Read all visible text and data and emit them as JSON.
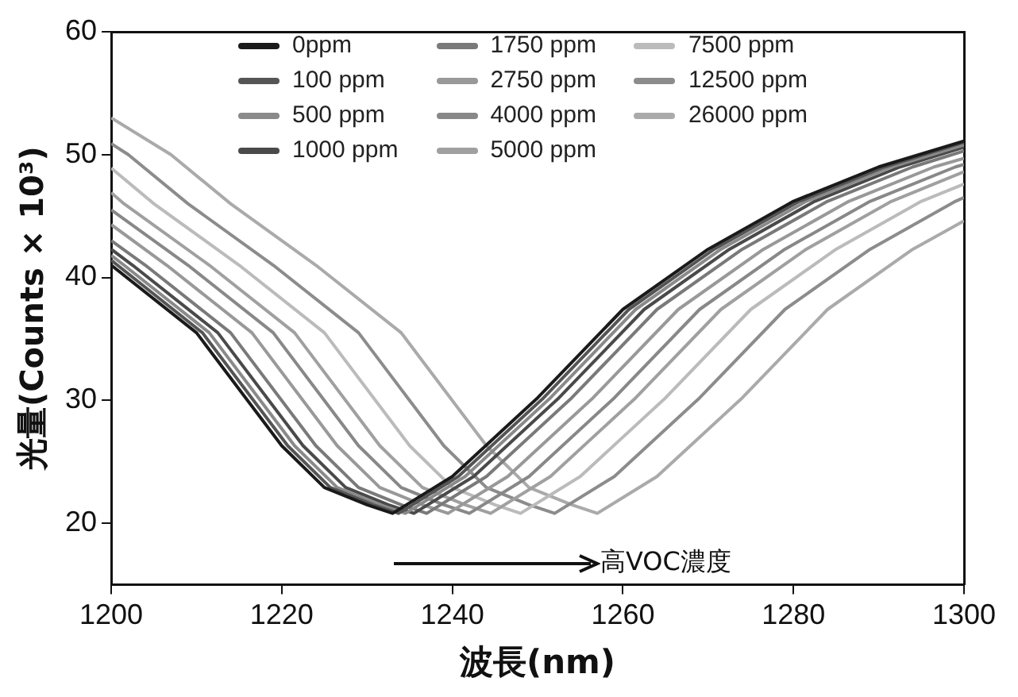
{
  "chart_data": {
    "type": "line",
    "xlabel": "波長(nm)",
    "ylabel": "光量(Counts × 10³)",
    "xlim": [
      1200,
      1300
    ],
    "xticks": [
      1200,
      1220,
      1240,
      1260,
      1280,
      1300
    ],
    "ylim": [
      15,
      60
    ],
    "yticks": [
      20,
      30,
      40,
      50,
      60
    ],
    "grid": false,
    "legend": "top",
    "annotations": [
      "高VOC濃度"
    ],
    "series": [
      {
        "name": "0ppm",
        "color": "#1a1a1a",
        "x": [
          1200,
          1210,
          1220,
          1225,
          1230,
          1233,
          1240,
          1250,
          1260,
          1270,
          1280,
          1290,
          1300
        ],
        "values": [
          41,
          35.5,
          26.3,
          22.9,
          21.5,
          20.8,
          23.8,
          30.2,
          37.4,
          42.3,
          46.2,
          49,
          51.1
        ]
      },
      {
        "name": "100 ppm",
        "color": "#555555",
        "x": [
          1200,
          1210.7,
          1220.7,
          1225.7,
          1230.7,
          1233.7,
          1240.7,
          1250.7,
          1260.7,
          1270.7,
          1280.7,
          1290.7,
          1300
        ],
        "values": [
          41.4,
          35.5,
          26.3,
          22.9,
          21.5,
          20.8,
          23.8,
          30.2,
          37.4,
          42.3,
          46.2,
          49,
          51.0
        ]
      },
      {
        "name": "500 ppm",
        "color": "#8a8a8a",
        "x": [
          1200,
          1201.5,
          1211.5,
          1221.5,
          1226.5,
          1231.5,
          1234.5,
          1241.5,
          1251.5,
          1261.5,
          1271.5,
          1281.5,
          1291.5,
          1300
        ],
        "values": [
          41.8,
          41,
          35.5,
          26.3,
          22.9,
          21.5,
          20.8,
          23.8,
          30.2,
          37.4,
          42.3,
          46.2,
          49,
          50.8
        ]
      },
      {
        "name": "1000 ppm",
        "color": "#4a4a4a",
        "x": [
          1200,
          1202.5,
          1212.5,
          1222.5,
          1227.5,
          1232.5,
          1235.5,
          1242.5,
          1252.5,
          1262.5,
          1272.5,
          1282.5,
          1292.5,
          1300
        ],
        "values": [
          42.3,
          41,
          35.5,
          26.3,
          22.9,
          21.5,
          20.8,
          23.8,
          30.2,
          37.4,
          42.3,
          46.2,
          49,
          50.6
        ]
      },
      {
        "name": "1750 ppm",
        "color": "#7a7a7a",
        "x": [
          1200,
          1204,
          1214,
          1224,
          1229,
          1234,
          1237,
          1244,
          1254,
          1264,
          1274,
          1284,
          1294,
          1300
        ],
        "values": [
          43,
          41,
          35.5,
          26.3,
          22.9,
          21.5,
          20.8,
          23.8,
          30.2,
          37.4,
          42.3,
          46.2,
          49,
          50.3
        ]
      },
      {
        "name": "2750 ppm",
        "color": "#999999",
        "x": [
          1200,
          1206.5,
          1216.5,
          1226.5,
          1231.5,
          1236.5,
          1239.5,
          1246.5,
          1256.5,
          1266.5,
          1276.5,
          1286.5,
          1296.5,
          1300
        ],
        "values": [
          44.3,
          41,
          35.5,
          26.3,
          22.9,
          21.5,
          20.8,
          23.8,
          30.2,
          37.4,
          42.3,
          46.2,
          49,
          49.7
        ]
      },
      {
        "name": "4000 ppm",
        "color": "#888888",
        "x": [
          1200,
          1209,
          1219,
          1229,
          1234,
          1239,
          1242,
          1249,
          1259,
          1269,
          1279,
          1289,
          1299,
          1300
        ],
        "values": [
          45.5,
          41,
          35.5,
          26.3,
          22.9,
          21.5,
          20.8,
          23.8,
          30.2,
          37.4,
          42.3,
          46.2,
          49,
          49.2
        ]
      },
      {
        "name": "5000 ppm",
        "color": "#a0a0a0",
        "x": [
          1200,
          1201.5,
          1211.5,
          1221.5,
          1231.5,
          1236.5,
          1241.5,
          1244.5,
          1251.5,
          1261.5,
          1271.5,
          1281.5,
          1291.5,
          1300
        ],
        "values": [
          46.9,
          46,
          41,
          35.5,
          26.3,
          22.9,
          21.5,
          20.8,
          23.8,
          30.2,
          37.4,
          42.3,
          46.2,
          48.6
        ]
      },
      {
        "name": "7500 ppm",
        "color": "#bbbbbb",
        "x": [
          1200,
          1205,
          1215,
          1225,
          1235,
          1240,
          1245,
          1248,
          1255,
          1265,
          1275,
          1285,
          1295,
          1300
        ],
        "values": [
          48.9,
          46,
          41,
          35.5,
          26.3,
          22.9,
          21.5,
          20.8,
          23.8,
          30.2,
          37.4,
          42.3,
          46.2,
          47.6
        ]
      },
      {
        "name": "12500 ppm",
        "color": "#8c8c8c",
        "x": [
          1200,
          1202,
          1209,
          1219,
          1229,
          1239,
          1244,
          1249,
          1252,
          1259,
          1269,
          1279,
          1289,
          1299,
          1300
        ],
        "values": [
          50.9,
          50,
          46,
          41,
          35.5,
          26.3,
          22.9,
          21.5,
          20.8,
          23.8,
          30.2,
          37.4,
          42.3,
          46.2,
          46.5
        ]
      },
      {
        "name": "26000 ppm",
        "color": "#aaaaaa",
        "x": [
          1200,
          1207,
          1214,
          1224,
          1234,
          1244,
          1249,
          1254,
          1257,
          1264,
          1274,
          1284,
          1294,
          1300
        ],
        "values": [
          53,
          50,
          46,
          41,
          35.5,
          26.3,
          22.9,
          21.5,
          20.8,
          23.8,
          30.2,
          37.4,
          42.3,
          44.6
        ]
      }
    ]
  }
}
